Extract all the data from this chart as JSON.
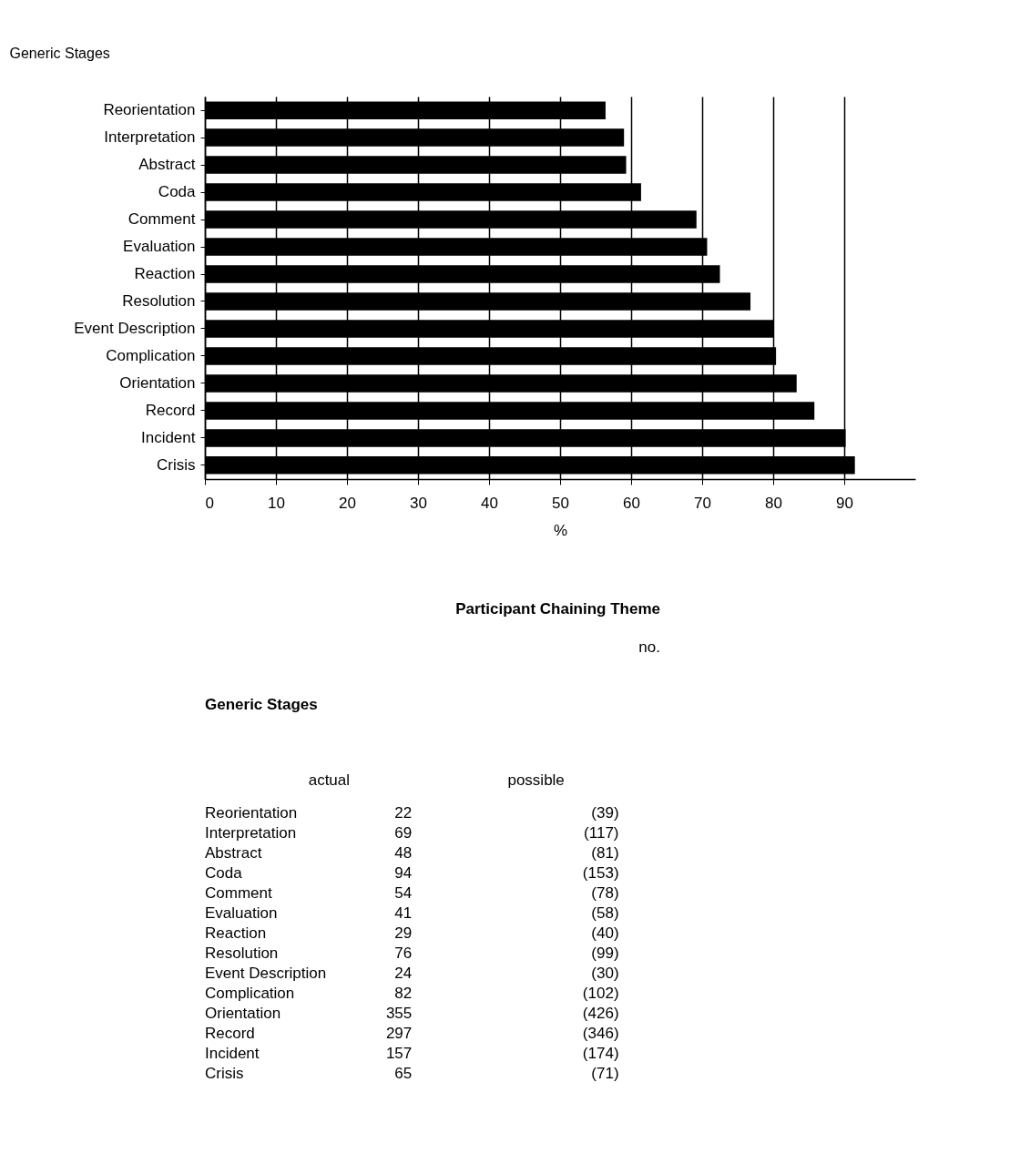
{
  "chart_data": [
    {
      "type": "bar",
      "orientation": "horizontal",
      "ylabel": "Generic Stages",
      "xlabel": "%",
      "categories": [
        "Reorientation",
        "Interpretation",
        "Abstract",
        "Coda",
        "Comment",
        "Evaluation",
        "Reaction",
        "Resolution",
        "Event Description",
        "Complication",
        "Orientation",
        "Record",
        "Incident",
        "Crisis"
      ],
      "values": [
        56.4,
        59.0,
        59.3,
        61.4,
        69.2,
        70.7,
        72.5,
        76.8,
        80.0,
        80.4,
        83.3,
        85.8,
        90.2,
        91.5
      ],
      "color": "#000000",
      "xlim": [
        0,
        100
      ],
      "xticks": [
        0,
        10,
        20,
        30,
        40,
        50,
        60,
        70,
        80,
        90
      ],
      "grid": "x"
    },
    {
      "type": "other",
      "data_labels": true,
      "title": "Participant Chaining Theme",
      "subtitle": "no.",
      "ylabel": "Generic Stages",
      "categories": [
        "Reorientation",
        "Interpretation",
        "Abstract",
        "Coda",
        "Comment",
        "Evaluation",
        "Reaction",
        "Resolution",
        "Event Description",
        "Complication",
        "Orientation",
        "Record",
        "Incident",
        "Crisis"
      ],
      "series": [
        {
          "name": "actual",
          "values": [
            22,
            69,
            48,
            94,
            54,
            41,
            29,
            76,
            24,
            82,
            355,
            297,
            157,
            65
          ]
        },
        {
          "name": "possible",
          "values": [
            39,
            117,
            81,
            153,
            78,
            58,
            40,
            99,
            30,
            102,
            426,
            346,
            174,
            71
          ],
          "value_labels": [
            "(39)",
            "(117)",
            "(81)",
            "(153)",
            "(78)",
            "(58)",
            "(40)",
            "(99)",
            "(30)",
            "(102)",
            "(426)",
            "(346)",
            "(174)",
            "(71)"
          ]
        }
      ]
    }
  ]
}
